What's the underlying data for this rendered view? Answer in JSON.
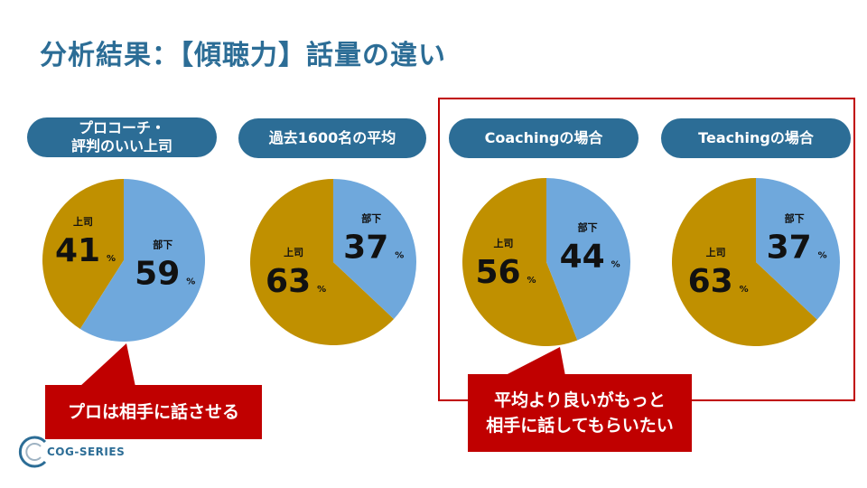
{
  "page": {
    "title": "分析結果：【傾聴力】話量の違い",
    "callout_left": "プロは相手に話させる",
    "callout_right_line1": "平均より良いがもっと",
    "callout_right_line2": "相手に話してもらいたい",
    "logo_text": "COG-SERIES"
  },
  "colors": {
    "boss": "#c09000",
    "subordinate": "#6fa8dc",
    "accent": "#2c6d96",
    "callout": "#c00000"
  },
  "chart_data": [
    {
      "type": "pie",
      "title_line1": "プロコーチ・",
      "title_line2": "評判のいい上司",
      "slices": [
        {
          "label": "上司",
          "value": 41,
          "unit": "%"
        },
        {
          "label": "部下",
          "value": 59,
          "unit": "%"
        }
      ]
    },
    {
      "type": "pie",
      "title_line1": "過去1600名の平均",
      "title_line2": "",
      "slices": [
        {
          "label": "上司",
          "value": 63,
          "unit": "%"
        },
        {
          "label": "部下",
          "value": 37,
          "unit": "%"
        }
      ]
    },
    {
      "type": "pie",
      "title_line1": "Coachingの場合",
      "title_line2": "",
      "slices": [
        {
          "label": "上司",
          "value": 56,
          "unit": "%"
        },
        {
          "label": "部下",
          "value": 44,
          "unit": "%"
        }
      ]
    },
    {
      "type": "pie",
      "title_line1": "Teachingの場合",
      "title_line2": "",
      "slices": [
        {
          "label": "上司",
          "value": 63,
          "unit": "%"
        },
        {
          "label": "部下",
          "value": 37,
          "unit": "%"
        }
      ]
    }
  ]
}
